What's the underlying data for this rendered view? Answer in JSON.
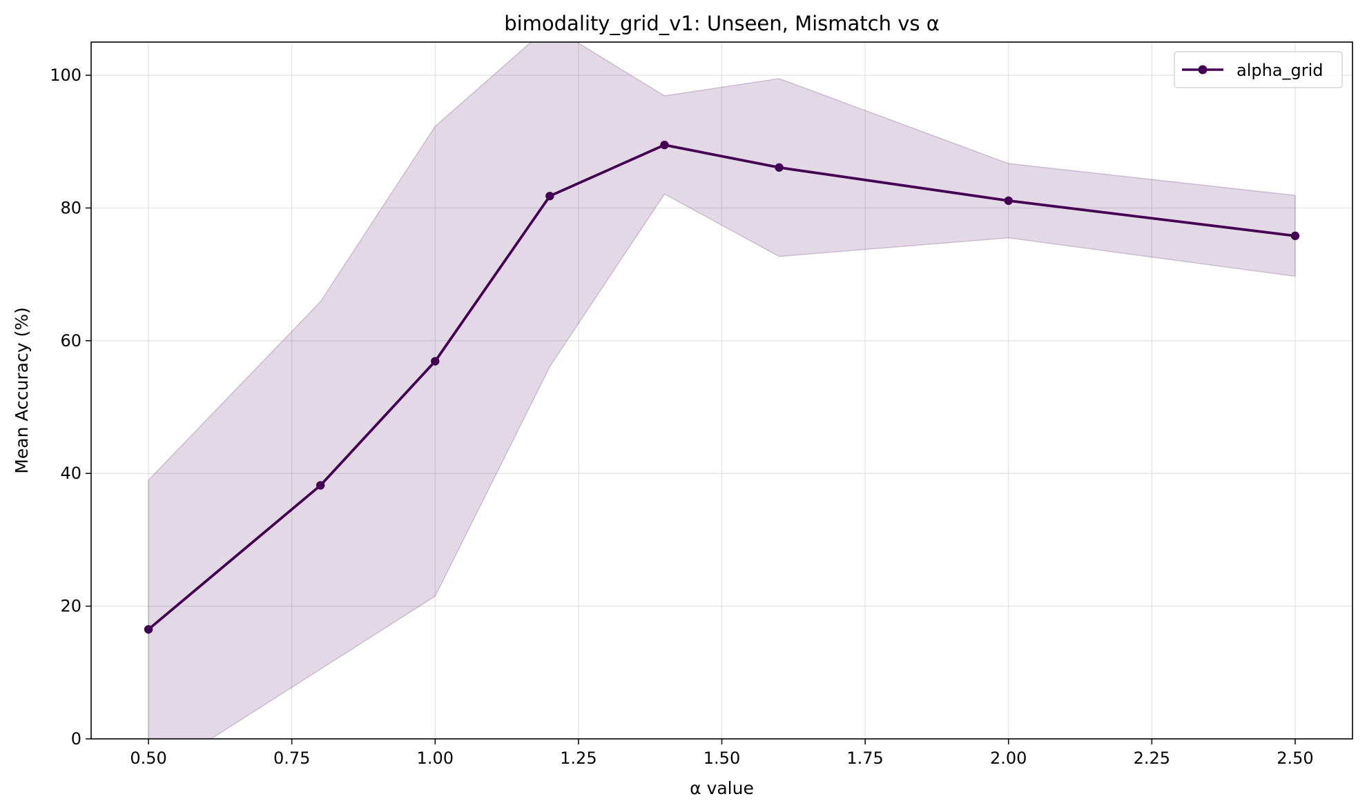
{
  "chart_data": {
    "type": "line",
    "title": "bimodality_grid_v1: Unseen, Mismatch vs α",
    "xlabel": "α value",
    "ylabel": "Mean Accuracy (%)",
    "xlim": [
      0.4,
      2.6
    ],
    "ylim": [
      0,
      105
    ],
    "xticks": [
      0.5,
      0.75,
      1.0,
      1.25,
      1.5,
      1.75,
      2.0,
      2.25,
      2.5
    ],
    "xtick_labels": [
      "0.50",
      "0.75",
      "1.00",
      "1.25",
      "1.50",
      "1.75",
      "2.00",
      "2.25",
      "2.50"
    ],
    "yticks": [
      0,
      20,
      40,
      60,
      80,
      100
    ],
    "ytick_labels": [
      "0",
      "20",
      "40",
      "60",
      "80",
      "100"
    ],
    "grid": true,
    "legend": "top-right",
    "line_color": "#440154",
    "band_color": "#440154",
    "series": [
      {
        "name": "alpha_grid",
        "x": [
          0.5,
          0.8,
          1.0,
          1.2,
          1.4,
          1.6,
          2.0,
          2.5
        ],
        "y": [
          16.5,
          38.2,
          56.9,
          81.8,
          89.5,
          86.1,
          81.1,
          75.8
        ],
        "upper": [
          39.0,
          65.9,
          92.3,
          107.5,
          96.9,
          99.5,
          86.7,
          81.9
        ],
        "lower": [
          -6.0,
          10.5,
          21.5,
          56.1,
          82.1,
          72.7,
          75.5,
          69.7
        ]
      }
    ]
  }
}
